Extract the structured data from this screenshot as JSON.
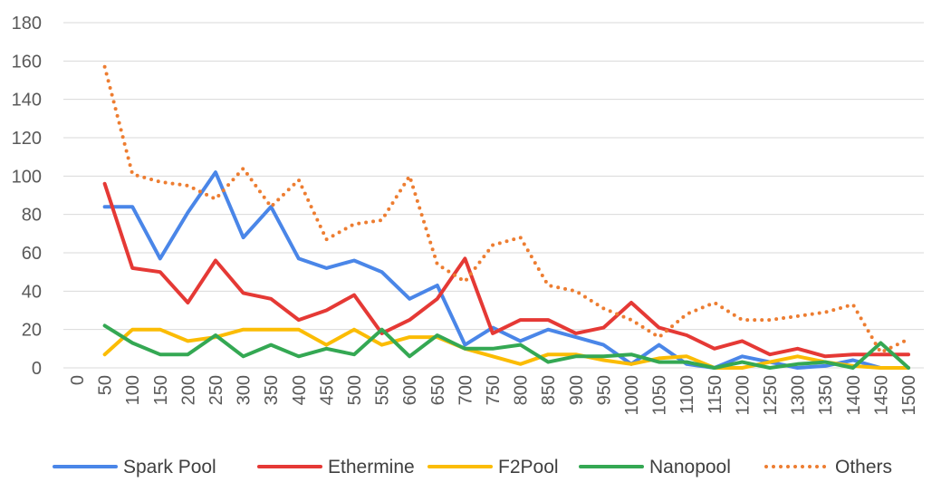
{
  "chart_data": {
    "type": "line",
    "x": [
      0,
      50,
      100,
      150,
      200,
      250,
      300,
      350,
      400,
      450,
      500,
      550,
      600,
      650,
      700,
      750,
      800,
      850,
      900,
      950,
      1000,
      1050,
      1100,
      1150,
      1200,
      1250,
      1300,
      1350,
      1400,
      1450,
      1500
    ],
    "x_tick_labels": [
      "0",
      "50",
      "100",
      "150",
      "200",
      "250",
      "300",
      "350",
      "400",
      "450",
      "500",
      "550",
      "600",
      "650",
      "700",
      "750",
      "800",
      "850",
      "900",
      "950",
      "1000",
      "1050",
      "1100",
      "1150",
      "1200",
      "1250",
      "1300",
      "1350",
      "1400",
      "1450",
      "1500"
    ],
    "y_ticks": [
      0,
      20,
      40,
      60,
      80,
      100,
      120,
      140,
      160,
      180
    ],
    "y_tick_labels": [
      "0",
      "20",
      "40",
      "60",
      "80",
      "100",
      "120",
      "140",
      "160",
      "180"
    ],
    "ylim": [
      0,
      180
    ],
    "grid": true,
    "legend_position": "bottom",
    "xlabel": "",
    "ylabel": "",
    "title": "",
    "series": [
      {
        "name": "Spark Pool",
        "color": "#4a86e8",
        "style": "solid",
        "values": [
          null,
          84,
          84,
          57,
          81,
          102,
          68,
          84,
          57,
          52,
          56,
          50,
          36,
          43,
          12,
          21,
          14,
          20,
          16,
          12,
          2,
          12,
          2,
          0,
          6,
          3,
          0,
          1,
          4,
          0,
          0
        ]
      },
      {
        "name": "Ethermine",
        "color": "#e53935",
        "style": "solid",
        "values": [
          null,
          96,
          52,
          50,
          34,
          56,
          39,
          36,
          25,
          30,
          38,
          18,
          25,
          36,
          57,
          18,
          25,
          25,
          18,
          21,
          34,
          21,
          17,
          10,
          14,
          7,
          10,
          6,
          7,
          7,
          7
        ]
      },
      {
        "name": "F2Pool",
        "color": "#fbbc04",
        "style": "solid",
        "values": [
          null,
          7,
          20,
          20,
          14,
          16,
          20,
          20,
          20,
          12,
          20,
          12,
          16,
          16,
          10,
          6,
          2,
          7,
          7,
          4,
          2,
          5,
          6,
          0,
          0,
          3,
          6,
          3,
          1,
          0,
          0
        ]
      },
      {
        "name": "Nanopool",
        "color": "#34a853",
        "style": "solid",
        "values": [
          null,
          22,
          13,
          7,
          7,
          17,
          6,
          12,
          6,
          10,
          7,
          20,
          6,
          17,
          10,
          10,
          12,
          3,
          6,
          6,
          7,
          3,
          3,
          0,
          3,
          0,
          2,
          3,
          0,
          13,
          0
        ]
      },
      {
        "name": "Others",
        "color": "#ed7d31",
        "style": "dotted",
        "values": [
          null,
          157,
          101,
          97,
          95,
          88,
          104,
          84,
          98,
          67,
          75,
          77,
          100,
          54,
          45,
          64,
          68,
          43,
          40,
          31,
          25,
          16,
          28,
          34,
          25,
          25,
          27,
          29,
          33,
          8,
          15
        ]
      }
    ]
  }
}
